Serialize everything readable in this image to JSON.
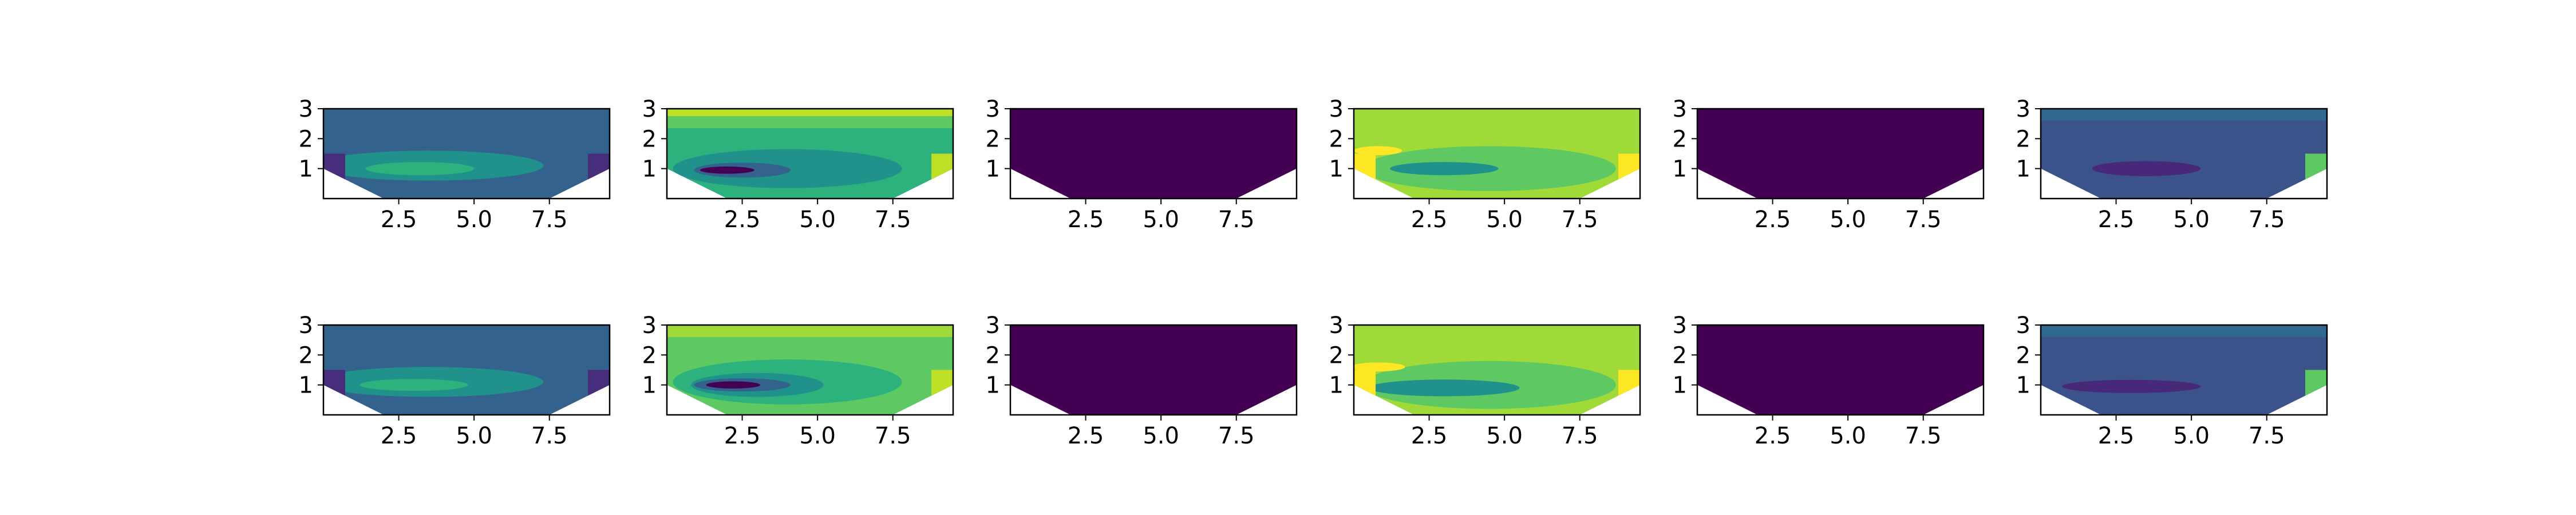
{
  "chart_data": {
    "type": "heatmap",
    "subtype": "filled-contour",
    "layout": {
      "rows": 2,
      "cols": 6
    },
    "colormap": "viridis",
    "xticks": [
      "2.5",
      "5.0",
      "7.5"
    ],
    "yticks": [
      "1",
      "2",
      "3"
    ],
    "xlim": [
      0,
      9.5
    ],
    "ylim": [
      0,
      3
    ],
    "domain_bottom": [
      [
        0,
        1
      ],
      [
        2,
        0
      ],
      [
        7.5,
        0
      ],
      [
        9.5,
        1
      ]
    ],
    "panels": [
      {
        "row": 1,
        "col": 1,
        "background": "#33628d",
        "blobs": [
          {
            "cx": 3.5,
            "cy": 1.1,
            "rx": 3.8,
            "ry": 0.5,
            "color": "#21918c"
          },
          {
            "cx": 3.2,
            "cy": 1.0,
            "rx": 1.8,
            "ry": 0.22,
            "color": "#2db27d"
          }
        ],
        "edges": [
          {
            "side": "left",
            "color": "#472d7b"
          },
          {
            "side": "right",
            "color": "#472d7b"
          }
        ]
      },
      {
        "row": 1,
        "col": 2,
        "background": "#2db27d",
        "bands": [
          {
            "y0": 2.75,
            "y1": 3.0,
            "color": "#bddf26"
          },
          {
            "y0": 2.35,
            "y1": 2.75,
            "color": "#5ec962"
          }
        ],
        "blobs": [
          {
            "cx": 4.0,
            "cy": 1.0,
            "rx": 3.8,
            "ry": 0.65,
            "color": "#21918c"
          },
          {
            "cx": 2.5,
            "cy": 0.95,
            "rx": 1.6,
            "ry": 0.25,
            "color": "#33628d"
          },
          {
            "cx": 2.0,
            "cy": 0.95,
            "rx": 0.9,
            "ry": 0.12,
            "color": "#440154"
          }
        ],
        "edges": [
          {
            "side": "right",
            "color": "#bddf26"
          }
        ]
      },
      {
        "row": 1,
        "col": 3,
        "background": "#440154"
      },
      {
        "row": 1,
        "col": 4,
        "background": "#a0da39",
        "blobs": [
          {
            "cx": 4.5,
            "cy": 1.0,
            "rx": 4.2,
            "ry": 0.75,
            "color": "#5ec962"
          },
          {
            "cx": 3.0,
            "cy": 1.0,
            "rx": 1.8,
            "ry": 0.22,
            "color": "#21918c"
          },
          {
            "cx": 0.8,
            "cy": 1.6,
            "rx": 0.8,
            "ry": 0.15,
            "color": "#fde725"
          }
        ],
        "edges": [
          {
            "side": "left",
            "color": "#fde725"
          },
          {
            "side": "right",
            "color": "#fde725"
          }
        ]
      },
      {
        "row": 1,
        "col": 5,
        "background": "#440154"
      },
      {
        "row": 1,
        "col": 6,
        "background": "#3b528b",
        "bands": [
          {
            "y0": 2.6,
            "y1": 3.0,
            "color": "#31688e"
          }
        ],
        "blobs": [
          {
            "cx": 3.5,
            "cy": 1.0,
            "rx": 1.8,
            "ry": 0.25,
            "color": "#482878"
          }
        ],
        "edges": [
          {
            "side": "right",
            "color": "#5ec962"
          }
        ]
      },
      {
        "row": 2,
        "col": 1,
        "background": "#33628d",
        "blobs": [
          {
            "cx": 3.5,
            "cy": 1.1,
            "rx": 3.8,
            "ry": 0.5,
            "color": "#21918c"
          },
          {
            "cx": 3.0,
            "cy": 1.0,
            "rx": 1.8,
            "ry": 0.2,
            "color": "#2db27d"
          }
        ],
        "edges": [
          {
            "side": "left",
            "color": "#472d7b"
          },
          {
            "side": "right",
            "color": "#472d7b"
          }
        ]
      },
      {
        "row": 2,
        "col": 2,
        "background": "#5ec962",
        "bands": [
          {
            "y0": 2.6,
            "y1": 3.0,
            "color": "#a0da39"
          }
        ],
        "blobs": [
          {
            "cx": 4.0,
            "cy": 1.1,
            "rx": 3.8,
            "ry": 0.75,
            "color": "#2db27d"
          },
          {
            "cx": 3.0,
            "cy": 1.0,
            "rx": 2.2,
            "ry": 0.4,
            "color": "#21918c"
          },
          {
            "cx": 2.5,
            "cy": 1.0,
            "rx": 1.6,
            "ry": 0.22,
            "color": "#33628d"
          },
          {
            "cx": 2.2,
            "cy": 1.0,
            "rx": 0.9,
            "ry": 0.12,
            "color": "#440154"
          }
        ],
        "edges": [
          {
            "side": "right",
            "color": "#bddf26"
          }
        ]
      },
      {
        "row": 2,
        "col": 3,
        "background": "#440154"
      },
      {
        "row": 2,
        "col": 4,
        "background": "#a0da39",
        "blobs": [
          {
            "cx": 4.5,
            "cy": 1.0,
            "rx": 4.2,
            "ry": 0.8,
            "color": "#5ec962"
          },
          {
            "cx": 3.0,
            "cy": 0.9,
            "rx": 2.5,
            "ry": 0.28,
            "color": "#21918c"
          },
          {
            "cx": 0.8,
            "cy": 1.6,
            "rx": 0.9,
            "ry": 0.15,
            "color": "#fde725"
          }
        ],
        "edges": [
          {
            "side": "left",
            "color": "#fde725"
          },
          {
            "side": "right",
            "color": "#fde725"
          }
        ]
      },
      {
        "row": 2,
        "col": 5,
        "background": "#440154"
      },
      {
        "row": 2,
        "col": 6,
        "background": "#3b528b",
        "bands": [
          {
            "y0": 2.6,
            "y1": 3.0,
            "color": "#31688e"
          }
        ],
        "blobs": [
          {
            "cx": 3.0,
            "cy": 0.95,
            "rx": 2.3,
            "ry": 0.22,
            "color": "#482878"
          }
        ],
        "edges": [
          {
            "side": "right",
            "color": "#5ec962"
          }
        ]
      }
    ]
  }
}
